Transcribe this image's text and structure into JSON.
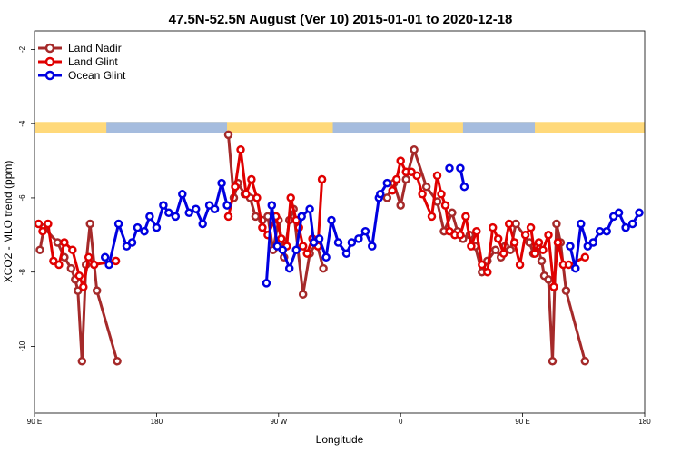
{
  "chart_data": {
    "type": "line",
    "title": "47.5N-52.5N August (Ver 10)   2015-01-01 to 2020-12-18",
    "xlabel": "Longitude",
    "ylabel": "XCO2 - MLO trend (ppm)",
    "x_ticks": [
      {
        "value": 90,
        "label": "90 E"
      },
      {
        "value": 180,
        "label": "180"
      },
      {
        "value": 270,
        "label": "90 W"
      },
      {
        "value": 360,
        "label": "0"
      },
      {
        "value": 450,
        "label": "90 E"
      },
      {
        "value": 540,
        "label": "180"
      }
    ],
    "y_ticks": [
      {
        "value": -2,
        "label": "-2"
      },
      {
        "value": -4,
        "label": "-4"
      },
      {
        "value": -6,
        "label": "-6"
      },
      {
        "value": -8,
        "label": "-8"
      },
      {
        "value": -10,
        "label": "-10"
      }
    ],
    "xlim": [
      90,
      540
    ],
    "ylim": [
      -11.8,
      -1.5
    ],
    "grid": false,
    "legend_position": "top-left",
    "land_ocean_bar": {
      "y": -4.1,
      "land_color": "#ffd97a",
      "ocean_color": "#a5bcde",
      "ocean_segments": [
        [
          143,
          232
        ],
        [
          310,
          367
        ],
        [
          406,
          459
        ]
      ]
    },
    "series": [
      {
        "name": "Land Nadir",
        "color": "#a52a2a",
        "segments": [
          [
            [
              94,
              -7.4
            ],
            [
              97,
              -6.8
            ],
            [
              107,
              -7.2
            ],
            [
              112,
              -7.6
            ],
            [
              117,
              -7.9
            ],
            [
              120,
              -8.2
            ],
            [
              122,
              -8.5
            ],
            [
              125,
              -10.4
            ],
            [
              128,
              -7.8
            ],
            [
              131,
              -6.7
            ],
            [
              136,
              -8.5
            ],
            [
              151,
              -10.4
            ]
          ],
          [
            [
              233,
              -4.3
            ],
            [
              237,
              -6.0
            ],
            [
              240,
              -5.6
            ],
            [
              245,
              -5.9
            ],
            [
              249,
              -6.0
            ],
            [
              253,
              -6.5
            ],
            [
              258,
              -6.6
            ],
            [
              262,
              -6.5
            ],
            [
              266,
              -7.4
            ],
            [
              270,
              -6.6
            ],
            [
              274,
              -7.6
            ],
            [
              278,
              -6.6
            ],
            [
              281,
              -6.3
            ],
            [
              288,
              -8.6
            ],
            [
              293,
              -7.5
            ],
            [
              298,
              -7.2
            ],
            [
              303,
              -7.9
            ]
          ],
          [
            [
              350,
              -6.0
            ],
            [
              355,
              -5.6
            ],
            [
              360,
              -6.2
            ],
            [
              364,
              -5.5
            ],
            [
              370,
              -4.7
            ],
            [
              379,
              -5.7
            ],
            [
              387,
              -6.1
            ],
            [
              392,
              -6.9
            ],
            [
              398,
              -6.4
            ],
            [
              402,
              -6.9
            ],
            [
              406,
              -7.1
            ],
            [
              411,
              -7.0
            ],
            [
              415,
              -7.3
            ],
            [
              420,
              -8.0
            ],
            [
              424,
              -7.7
            ],
            [
              430,
              -7.4
            ],
            [
              434,
              -7.6
            ],
            [
              437,
              -7.3
            ],
            [
              441,
              -7.4
            ],
            [
              445,
              -6.7
            ],
            [
              455,
              -7.2
            ],
            [
              458,
              -7.5
            ],
            [
              461,
              -7.3
            ],
            [
              464,
              -7.7
            ],
            [
              466,
              -8.1
            ],
            [
              469,
              -8.2
            ],
            [
              472,
              -10.4
            ],
            [
              475,
              -6.7
            ],
            [
              478,
              -7.2
            ],
            [
              482,
              -8.5
            ],
            [
              496,
              -10.4
            ]
          ]
        ]
      },
      {
        "name": "Land Glint",
        "color": "#e00000",
        "segments": [
          [
            [
              93,
              -6.7
            ],
            [
              96,
              -6.9
            ],
            [
              100,
              -6.7
            ],
            [
              104,
              -7.7
            ],
            [
              108,
              -7.8
            ],
            [
              112,
              -7.2
            ],
            [
              118,
              -7.4
            ],
            [
              123,
              -8.1
            ],
            [
              126,
              -8.4
            ],
            [
              130,
              -7.6
            ],
            [
              134,
              -7.8
            ],
            [
              150,
              -7.7
            ]
          ],
          [
            [
              233,
              -6.5
            ],
            [
              238,
              -5.7
            ],
            [
              242,
              -4.7
            ],
            [
              246,
              -5.9
            ],
            [
              250,
              -5.5
            ],
            [
              254,
              -6.0
            ],
            [
              258,
              -6.8
            ],
            [
              262,
              -7.0
            ],
            [
              268,
              -6.5
            ],
            [
              272,
              -7.1
            ],
            [
              276,
              -7.3
            ],
            [
              279,
              -6.0
            ],
            [
              283,
              -6.6
            ],
            [
              285,
              -6.8
            ],
            [
              288,
              -7.3
            ],
            [
              291,
              -7.5
            ],
            [
              295,
              -7.1
            ],
            [
              299,
              -7.3
            ],
            [
              302,
              -5.5
            ]
          ],
          [
            [
              354,
              -5.8
            ],
            [
              357,
              -5.5
            ],
            [
              360,
              -5.0
            ],
            [
              364,
              -5.3
            ],
            [
              368,
              -5.3
            ],
            [
              372,
              -5.4
            ],
            [
              376,
              -5.9
            ],
            [
              383,
              -6.5
            ],
            [
              387,
              -5.4
            ],
            [
              390,
              -5.9
            ],
            [
              393,
              -6.2
            ],
            [
              396,
              -6.9
            ],
            [
              400,
              -7.0
            ],
            [
              404,
              -7.0
            ],
            [
              408,
              -6.5
            ],
            [
              412,
              -7.3
            ],
            [
              416,
              -6.9
            ],
            [
              420,
              -7.8
            ],
            [
              424,
              -8.0
            ],
            [
              428,
              -6.8
            ],
            [
              432,
              -7.1
            ],
            [
              436,
              -7.5
            ],
            [
              440,
              -6.7
            ],
            [
              444,
              -7.2
            ],
            [
              448,
              -7.8
            ],
            [
              452,
              -7.0
            ],
            [
              456,
              -6.8
            ],
            [
              459,
              -7.5
            ],
            [
              462,
              -7.2
            ],
            [
              465,
              -7.4
            ],
            [
              469,
              -7.0
            ],
            [
              473,
              -8.4
            ],
            [
              476,
              -7.2
            ],
            [
              480,
              -7.8
            ],
            [
              484,
              -7.8
            ],
            [
              496,
              -7.6
            ]
          ]
        ]
      },
      {
        "name": "Ocean Glint",
        "color": "#0000e0",
        "segments": [
          [
            [
              142,
              -7.6
            ],
            [
              145,
              -7.8
            ],
            [
              152,
              -6.7
            ],
            [
              158,
              -7.3
            ],
            [
              162,
              -7.2
            ],
            [
              166,
              -6.8
            ],
            [
              171,
              -6.9
            ],
            [
              175,
              -6.5
            ],
            [
              180,
              -6.8
            ],
            [
              185,
              -6.2
            ],
            [
              189,
              -6.4
            ],
            [
              194,
              -6.5
            ],
            [
              199,
              -5.9
            ],
            [
              204,
              -6.4
            ],
            [
              209,
              -6.3
            ],
            [
              214,
              -6.7
            ],
            [
              219,
              -6.2
            ],
            [
              223,
              -6.3
            ],
            [
              228,
              -5.6
            ],
            [
              232,
              -6.2
            ]
          ],
          [
            [
              261,
              -8.3
            ],
            [
              265,
              -6.2
            ],
            [
              269,
              -7.3
            ],
            [
              273,
              -7.4
            ],
            [
              278,
              -7.9
            ],
            [
              283,
              -7.4
            ],
            [
              287,
              -6.5
            ],
            [
              293,
              -6.3
            ],
            [
              296,
              -7.2
            ],
            [
              300,
              -7.1
            ],
            [
              305,
              -7.6
            ],
            [
              309,
              -6.6
            ],
            [
              314,
              -7.2
            ],
            [
              320,
              -7.5
            ],
            [
              324,
              -7.2
            ],
            [
              329,
              -7.1
            ],
            [
              334,
              -6.9
            ],
            [
              339,
              -7.3
            ],
            [
              344,
              -6.0
            ]
          ],
          [
            [
              345,
              -5.9
            ],
            [
              350,
              -5.6
            ]
          ],
          [
            [
              396,
              -5.2
            ]
          ],
          [
            [
              404,
              -5.2
            ],
            [
              407,
              -5.7
            ]
          ],
          [
            [
              485,
              -7.3
            ],
            [
              489,
              -7.9
            ],
            [
              493,
              -6.7
            ],
            [
              498,
              -7.3
            ],
            [
              502,
              -7.2
            ],
            [
              507,
              -6.9
            ],
            [
              512,
              -6.9
            ],
            [
              517,
              -6.5
            ],
            [
              521,
              -6.4
            ],
            [
              526,
              -6.8
            ],
            [
              531,
              -6.7
            ],
            [
              536,
              -6.4
            ]
          ]
        ]
      }
    ]
  }
}
